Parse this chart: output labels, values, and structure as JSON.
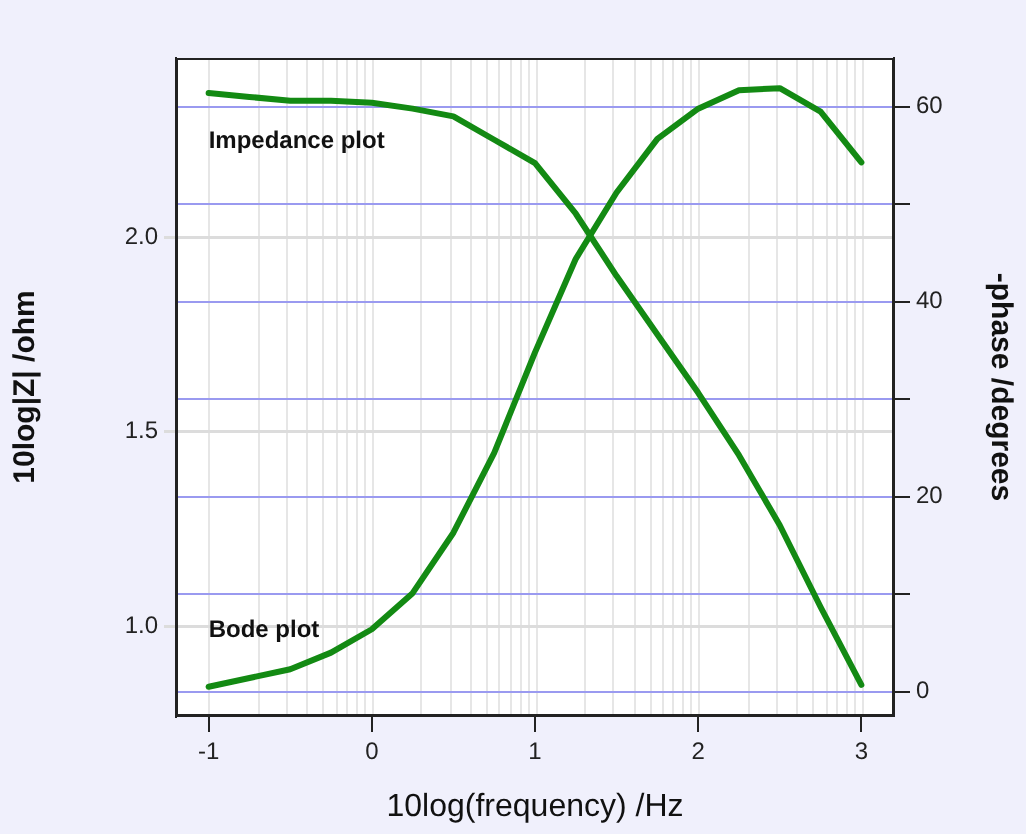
{
  "chart_data": {
    "type": "line",
    "xlabel": "10log(frequency) /Hz",
    "ylabel": "10log|Z| /ohm",
    "y2label": "-phase /degrees",
    "x": [
      -1,
      -0.75,
      -0.5,
      -0.25,
      0,
      0.25,
      0.5,
      0.75,
      1,
      1.25,
      1.5,
      1.75,
      2,
      2.25,
      2.5,
      2.75,
      3
    ],
    "series": [
      {
        "name": "Impedance plot",
        "color": "#138a13",
        "values": [
          2.37,
          2.36,
          2.35,
          2.35,
          2.345,
          2.33,
          2.31,
          2.25,
          2.19,
          2.06,
          1.9,
          1.75,
          1.6,
          1.44,
          1.26,
          1.05,
          0.85
        ]
      },
      {
        "name": "Bode plot",
        "color": "#138a13",
        "axis": "y2",
        "values": [
          0.5,
          1.4,
          2.3,
          4,
          6.4,
          10.1,
          16.3,
          24.5,
          34.8,
          44.4,
          51.2,
          56.7,
          59.8,
          61.7,
          61.9,
          59.5,
          54.3
        ]
      }
    ],
    "xlim": [
      -1.2,
      3.2
    ],
    "xticks": [
      -1,
      0,
      1,
      2,
      3
    ],
    "ylim": [
      0.77,
      2.46
    ],
    "yticks": [
      {
        "value": 1,
        "label": "1.0"
      },
      {
        "value": 1.5,
        "label": "1.5"
      },
      {
        "value": 2,
        "label": "2.0"
      }
    ],
    "y2lim": [
      -2.5,
      65
    ],
    "y2ticks": [
      0,
      {
        "value": 10,
        "label": null
      },
      20,
      {
        "value": 30,
        "label": null
      },
      40,
      {
        "value": 50,
        "label": null
      },
      60
    ],
    "grid": true,
    "legend": false,
    "marker": "none",
    "line_style": "solid"
  }
}
